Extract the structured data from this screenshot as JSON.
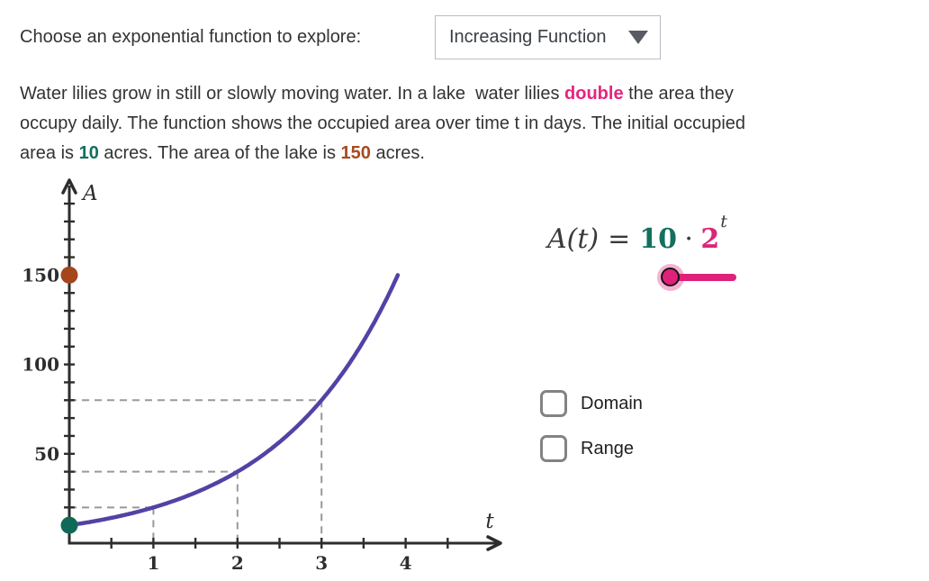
{
  "header": {
    "prompt": "Choose an exponential function to explore:",
    "dropdown": {
      "value": "Increasing Function",
      "icon": "caret-down-icon"
    }
  },
  "description": {
    "segments": [
      {
        "text": "Water lilies grow in still or slowly moving water. In a lake  water lilies ",
        "emphasis": "none"
      },
      {
        "text": "double",
        "emphasis": "pink-bold"
      },
      {
        "text": " the area they\noccupy daily. The function shows the occupied area over time t in days. The initial occupied\narea is ",
        "emphasis": "none"
      },
      {
        "text": "10",
        "emphasis": "teal-bold"
      },
      {
        "text": " acres. The area of the lake is ",
        "emphasis": "none"
      },
      {
        "text": "150",
        "emphasis": "brown-bold"
      },
      {
        "text": " acres.",
        "emphasis": "none"
      }
    ]
  },
  "formula": {
    "lhs": "A(t)",
    "equals": "=",
    "coefficient": "10",
    "dot": "⋅",
    "base": "2",
    "exponent": "t"
  },
  "slider": {
    "position": "min"
  },
  "checkboxes": [
    {
      "label": "Domain",
      "checked": false
    },
    {
      "label": "Range",
      "checked": false
    }
  ],
  "colors": {
    "double_highlight": "#e5257e",
    "initial_area_highlight": "#13705f",
    "lake_area_highlight": "#a84a1e",
    "curve": "#5143a5",
    "slider": "#e0217a",
    "formula_base": "#dd2475",
    "guide": "#999999",
    "axis": "#2d2d2d"
  },
  "chart_data": {
    "type": "line",
    "title": "",
    "xlabel": "t",
    "ylabel": "A",
    "function_label": "A(t) = 10 · 2^t",
    "initial_value": 10,
    "base": 2,
    "x_plot_range": [
      0,
      3.907
    ],
    "xlim": [
      0,
      4.75
    ],
    "ylim": [
      0,
      200
    ],
    "x_ticks_labeled": [
      1,
      2,
      3,
      4
    ],
    "x_minor_tick_step": 0.5,
    "y_ticks_labeled": [
      50,
      100,
      150
    ],
    "y_minor_tick_step": 10,
    "grid": false,
    "curve_color": "#5143a5",
    "curve_points": [
      [
        0,
        10
      ],
      [
        0.5,
        14.1
      ],
      [
        1,
        20
      ],
      [
        1.5,
        28.3
      ],
      [
        2,
        40
      ],
      [
        2.5,
        56.6
      ],
      [
        3,
        80
      ],
      [
        3.5,
        113.1
      ],
      [
        3.907,
        150
      ]
    ],
    "guide_points": [
      [
        1,
        20
      ],
      [
        2,
        40
      ],
      [
        3,
        80
      ]
    ],
    "point_markers": [
      {
        "t": 0,
        "A": 10,
        "color": "#0e6a57",
        "name": "initial-area-point"
      },
      {
        "t": 0,
        "A": 150,
        "color": "#a5451c",
        "name": "lake-area-point"
      }
    ]
  }
}
